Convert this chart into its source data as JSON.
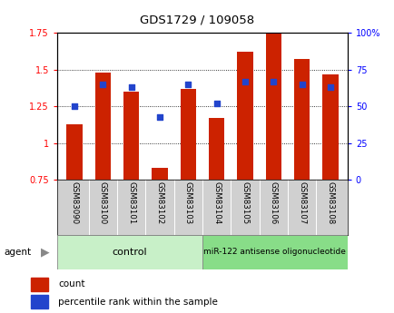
{
  "title": "GDS1729 / 109058",
  "categories": [
    "GSM83090",
    "GSM83100",
    "GSM83101",
    "GSM83102",
    "GSM83103",
    "GSM83104",
    "GSM83105",
    "GSM83106",
    "GSM83107",
    "GSM83108"
  ],
  "red_values": [
    1.13,
    1.48,
    1.35,
    0.83,
    1.37,
    1.17,
    1.62,
    1.75,
    1.57,
    1.47
  ],
  "blue_values": [
    50,
    65,
    63,
    43,
    65,
    52,
    67,
    67,
    65,
    63
  ],
  "ylim_left": [
    0.75,
    1.75
  ],
  "ylim_right": [
    0,
    100
  ],
  "yticks_left": [
    0.75,
    1.0,
    1.25,
    1.5,
    1.75
  ],
  "yticks_right": [
    0,
    25,
    50,
    75,
    100
  ],
  "ytick_labels_left": [
    "0.75",
    "1",
    "1.25",
    "1.5",
    "1.75"
  ],
  "ytick_labels_right": [
    "0",
    "25",
    "50",
    "75",
    "100%"
  ],
  "group1_label": "control",
  "group2_label": "miR-122 antisense oligonucleotide",
  "agent_label": "agent",
  "legend_count": "count",
  "legend_percentile": "percentile rank within the sample",
  "bar_color": "#cc2200",
  "dot_color": "#2244cc",
  "control_bg": "#c8f0c8",
  "treatment_bg": "#88dd88",
  "xlabel_bg": "#d0d0d0"
}
